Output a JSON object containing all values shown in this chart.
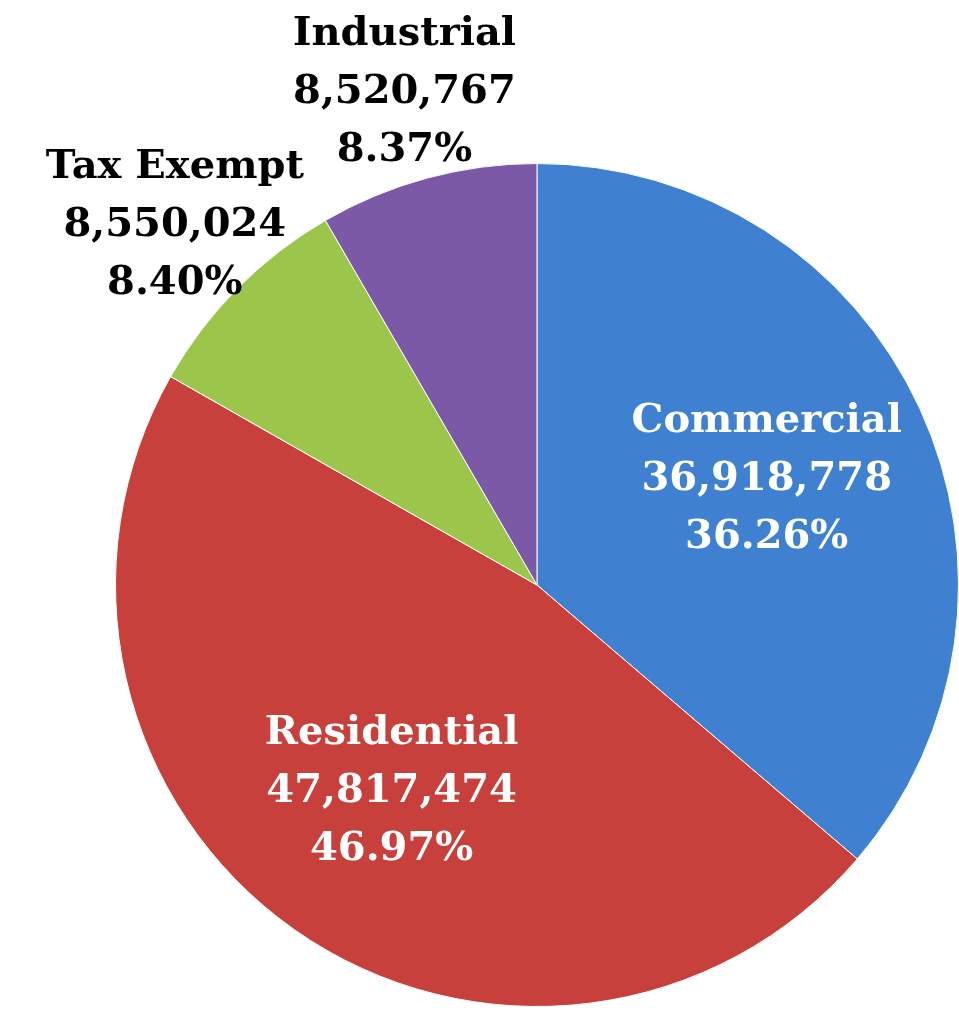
{
  "chart_data": {
    "type": "pie",
    "categories": [
      "Commercial",
      "Residential",
      "Tax Exempt",
      "Industrial"
    ],
    "values": [
      36918778,
      47817474,
      8550024,
      8520767
    ],
    "value_labels": [
      "36,918,778\n36.26%",
      "47,817,474\n46.97%",
      "8,550,024\n8.40%",
      "8,520,767\n8.37%"
    ],
    "colors": [
      "#3f80d1",
      "#c8403c",
      "#9cc54b",
      "#7c59a6"
    ],
    "legend": false
  }
}
